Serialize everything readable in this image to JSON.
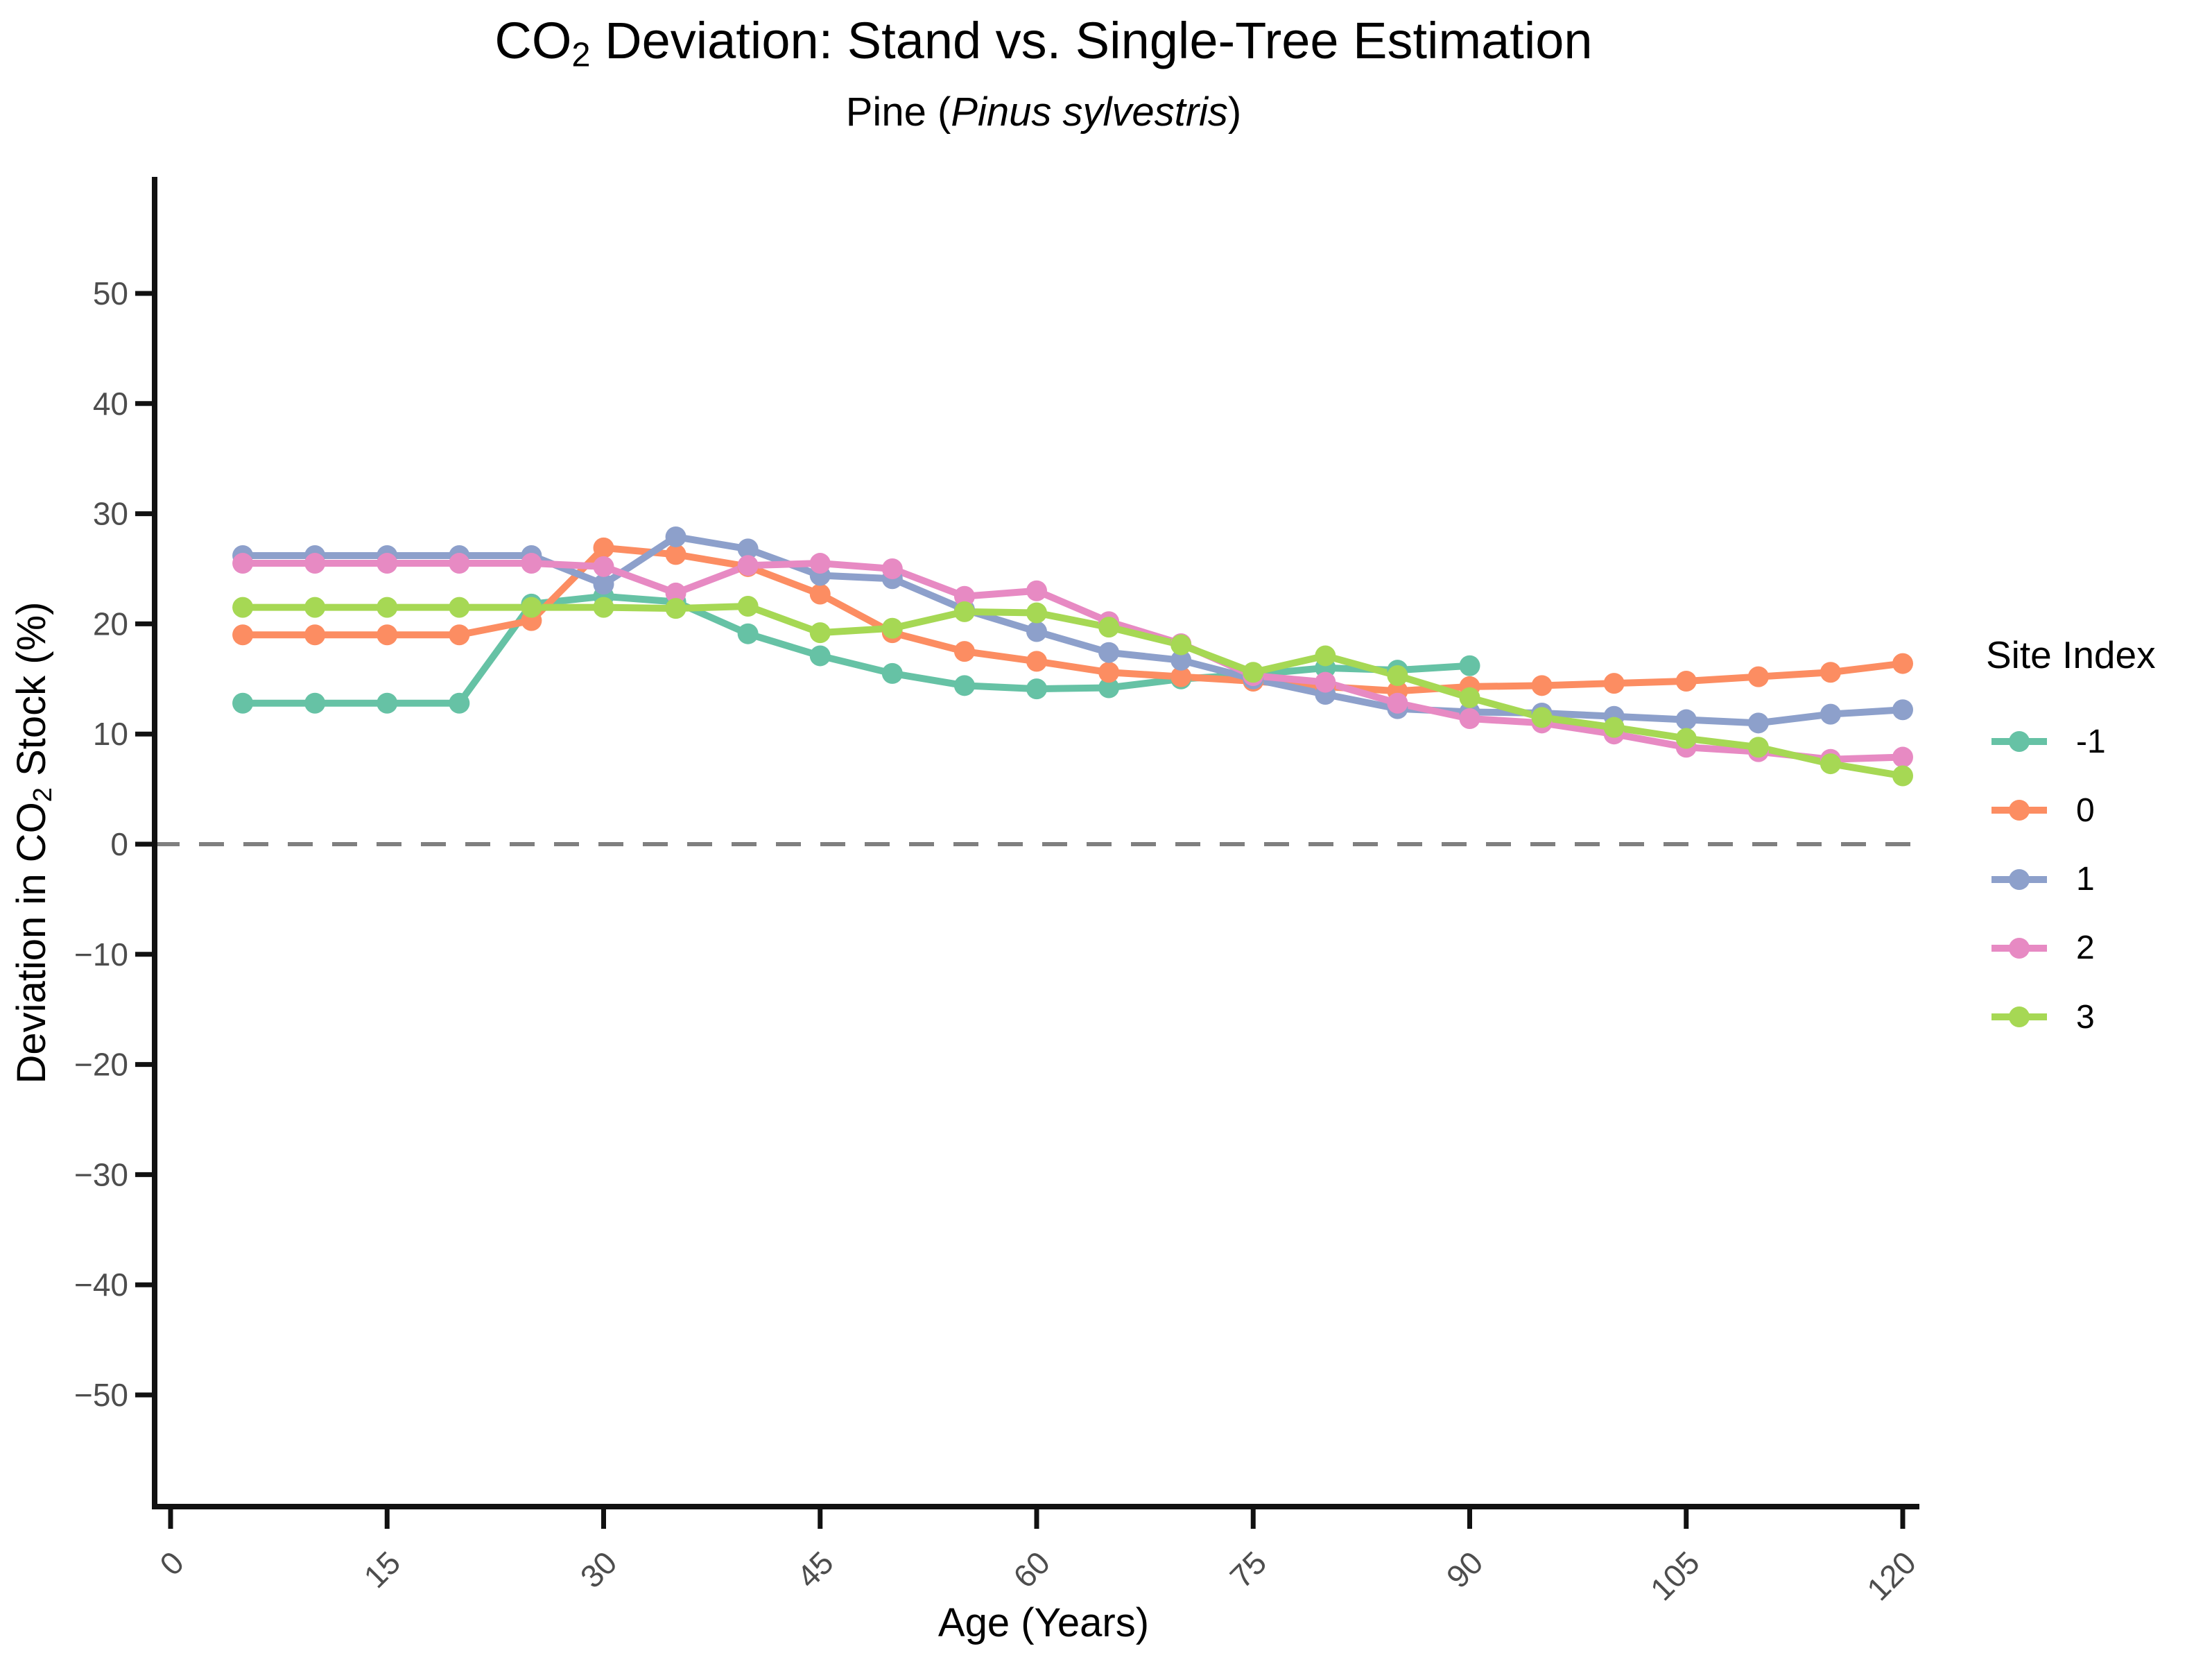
{
  "title": {
    "prefix": "CO",
    "sub": "2",
    "rest": " Deviation: Stand vs. Single-Tree Estimation"
  },
  "subtitle": {
    "prefix": "Pine (",
    "species": "Pinus sylvestris",
    "suffix": ")"
  },
  "axes": {
    "x": {
      "label": "Age (Years)",
      "ticks": [
        0,
        15,
        30,
        45,
        60,
        75,
        90,
        105,
        120
      ]
    },
    "y": {
      "label_prefix": "Deviation in CO",
      "label_sub": "2",
      "label_suffix": " Stock (%)",
      "ticks": [
        50,
        40,
        30,
        20,
        10,
        0,
        -10,
        -20,
        -30,
        -40,
        -50
      ]
    }
  },
  "legend": {
    "title": "Site Index",
    "entries": [
      {
        "label": "-1",
        "color": "#66C2A5"
      },
      {
        "label": "0",
        "color": "#FC8D62"
      },
      {
        "label": "1",
        "color": "#8DA0CB"
      },
      {
        "label": "2",
        "color": "#E78AC3"
      },
      {
        "label": "3",
        "color": "#A6D854"
      }
    ]
  },
  "reference_line": {
    "y": 0,
    "style": "dashed",
    "color": "#7F7F7F"
  },
  "style_colors": {
    "axis_line": "#111111",
    "tick_text": "#4d4d4d",
    "background": "#ffffff"
  },
  "chart_data": {
    "type": "line",
    "title": "CO2 Deviation: Stand vs. Single-Tree Estimation",
    "subtitle": "Pine (Pinus sylvestris)",
    "xlabel": "Age (Years)",
    "ylabel": "Deviation in CO2 Stock (%)",
    "xlim": [
      0,
      120
    ],
    "ylim": [
      -60,
      60
    ],
    "x_ticks": [
      0,
      15,
      30,
      45,
      60,
      75,
      90,
      105,
      120
    ],
    "y_ticks": [
      50,
      40,
      30,
      20,
      10,
      0,
      -10,
      -20,
      -30,
      -40,
      -50
    ],
    "grid": false,
    "legend_position": "right",
    "legend_title": "Site Index",
    "reference_line_y": 0,
    "series": [
      {
        "name": "-1",
        "color": "#66C2A5",
        "x": [
          5,
          10,
          15,
          20,
          25,
          30,
          35,
          40,
          45,
          50,
          55,
          60,
          65,
          70,
          75,
          80,
          85,
          90
        ],
        "values": [
          12.8,
          12.8,
          12.8,
          12.8,
          21.8,
          22.5,
          22.0,
          19.1,
          17.1,
          15.5,
          14.4,
          14.1,
          14.2,
          15.0,
          15.4,
          16.0,
          15.8,
          16.2
        ]
      },
      {
        "name": "0",
        "color": "#FC8D62",
        "x": [
          5,
          10,
          15,
          20,
          25,
          30,
          35,
          40,
          45,
          50,
          55,
          60,
          65,
          70,
          75,
          80,
          85,
          90,
          95,
          100,
          105,
          110,
          115,
          120
        ],
        "values": [
          19.0,
          19.0,
          19.0,
          19.0,
          20.3,
          26.9,
          26.3,
          25.2,
          22.7,
          19.2,
          17.5,
          16.6,
          15.6,
          15.2,
          14.8,
          14.3,
          13.9,
          14.3,
          14.4,
          14.6,
          14.8,
          15.2,
          15.6,
          16.4
        ]
      },
      {
        "name": "1",
        "color": "#8DA0CB",
        "x": [
          5,
          10,
          15,
          20,
          25,
          30,
          35,
          40,
          45,
          50,
          55,
          60,
          65,
          70,
          75,
          80,
          85,
          90,
          95,
          100,
          105,
          110,
          115,
          120
        ],
        "values": [
          26.2,
          26.2,
          26.2,
          26.2,
          26.2,
          23.6,
          27.9,
          26.8,
          24.4,
          24.1,
          21.3,
          19.3,
          17.4,
          16.7,
          15.0,
          13.6,
          12.3,
          12.0,
          11.9,
          11.6,
          11.3,
          11.0,
          11.8,
          12.2
        ]
      },
      {
        "name": "2",
        "color": "#E78AC3",
        "x": [
          5,
          10,
          15,
          20,
          25,
          30,
          35,
          40,
          45,
          50,
          55,
          60,
          65,
          70,
          75,
          80,
          85,
          90,
          95,
          100,
          105,
          110,
          115,
          120
        ],
        "values": [
          25.5,
          25.5,
          25.5,
          25.5,
          25.5,
          25.2,
          22.8,
          25.3,
          25.5,
          25.0,
          22.5,
          23.0,
          20.2,
          18.2,
          15.3,
          14.7,
          12.8,
          11.4,
          11.0,
          10.0,
          8.8,
          8.4,
          7.7,
          7.9
        ]
      },
      {
        "name": "3",
        "color": "#A6D854",
        "x": [
          5,
          10,
          15,
          20,
          25,
          30,
          35,
          40,
          45,
          50,
          55,
          60,
          65,
          70,
          75,
          80,
          85,
          90,
          95,
          100,
          105,
          110,
          115,
          120
        ],
        "values": [
          21.5,
          21.5,
          21.5,
          21.5,
          21.5,
          21.5,
          21.4,
          21.6,
          19.2,
          19.6,
          21.1,
          21.0,
          19.7,
          18.1,
          15.6,
          17.1,
          15.3,
          13.3,
          11.5,
          10.6,
          9.6,
          8.8,
          7.3,
          6.2
        ]
      }
    ]
  }
}
